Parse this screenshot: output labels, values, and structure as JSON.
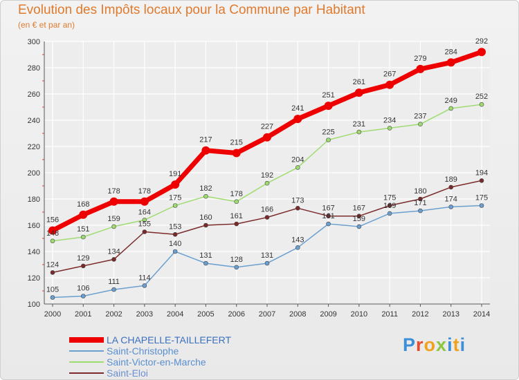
{
  "title": "Evolution des Impôts locaux pour la Commune par Habitant",
  "subtitle": "(en € et par an)",
  "brand": {
    "text": "Proxiti",
    "p": "P",
    "r": "r",
    "o": "o",
    "x": "x",
    "i": "i",
    "t": "t",
    "i2": "i"
  },
  "chart_data": {
    "type": "line",
    "x": [
      "2000",
      "2001",
      "2002",
      "2003",
      "2004",
      "2005",
      "2006",
      "2007",
      "2008",
      "2009",
      "2010",
      "2011",
      "2012",
      "2013",
      "2014"
    ],
    "ylim": [
      100,
      300
    ],
    "yticks": [
      100,
      120,
      140,
      160,
      180,
      200,
      220,
      240,
      260,
      280,
      300
    ],
    "grid": true,
    "legend_position": "bottom-left",
    "series": [
      {
        "name": "LA CHAPELLE-TAILLEFERT",
        "color": "#ee0000",
        "width": 7,
        "values": [
          156,
          168,
          178,
          178,
          191,
          217,
          215,
          227,
          241,
          251,
          261,
          267,
          279,
          284,
          292
        ]
      },
      {
        "name": "Saint-Christophe",
        "color": "#6a9fd0",
        "width": 1.5,
        "values": [
          105,
          106,
          111,
          114,
          140,
          131,
          128,
          131,
          143,
          161,
          159,
          169,
          171,
          174,
          175
        ]
      },
      {
        "name": "Saint-Victor-en-Marche",
        "color": "#9fdc70",
        "width": 1.5,
        "values": [
          148,
          151,
          159,
          164,
          175,
          182,
          178,
          192,
          204,
          225,
          231,
          234,
          237,
          249,
          252
        ]
      },
      {
        "name": "Saint-Eloi",
        "color": "#7a2a2a",
        "width": 1.5,
        "values": [
          124,
          129,
          134,
          155,
          153,
          160,
          161,
          166,
          173,
          167,
          167,
          175,
          180,
          189,
          194
        ]
      }
    ]
  }
}
